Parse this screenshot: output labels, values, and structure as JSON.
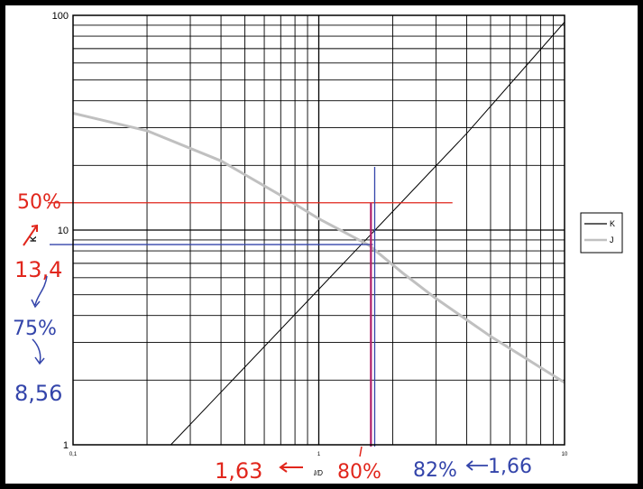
{
  "chart_data": {
    "type": "line",
    "x_scale": "log",
    "y_scale": "log",
    "xlim": [
      0.1,
      10
    ],
    "ylim": [
      1,
      100
    ],
    "grid": true,
    "legend_position": "right",
    "title": "",
    "xlabel": "l/D",
    "ylabel": "K",
    "x_tick_labels": [
      "0,1",
      "1",
      "10"
    ],
    "y_tick_labels": [
      "1",
      "10",
      "100"
    ],
    "series": [
      {
        "name": "K",
        "color": "#000000",
        "x": [
          0.25,
          0.5,
          1,
          2,
          4,
          10
        ],
        "y": [
          1.0,
          2.3,
          5.3,
          12.2,
          28.2,
          93.0
        ]
      },
      {
        "name": "J",
        "color": "#c0c0c0",
        "x": [
          0.1,
          0.2,
          0.4,
          0.7,
          1,
          1.6,
          2.2,
          3,
          5,
          10
        ],
        "y": [
          35.0,
          29.0,
          21.0,
          14.5,
          11.3,
          8.5,
          6.3,
          4.8,
          3.2,
          1.95
        ]
      }
    ]
  },
  "annotations": {
    "red": {
      "color": "#e1261c",
      "label_pct_top": "50%",
      "label_value_left": "13,4",
      "label_x_value": "1,63",
      "label_pct_bottom": "80%",
      "line_y": 13.4,
      "line_x": 1.63
    },
    "blue": {
      "color": "#3344aa",
      "label_pct_left": "75%",
      "label_value_left": "8,56",
      "label_pct_bottom": "82%",
      "label_x_value": "1,66",
      "line_y": 8.56,
      "line_x": 1.66
    },
    "magenta": {
      "color": "#b0206a"
    }
  }
}
